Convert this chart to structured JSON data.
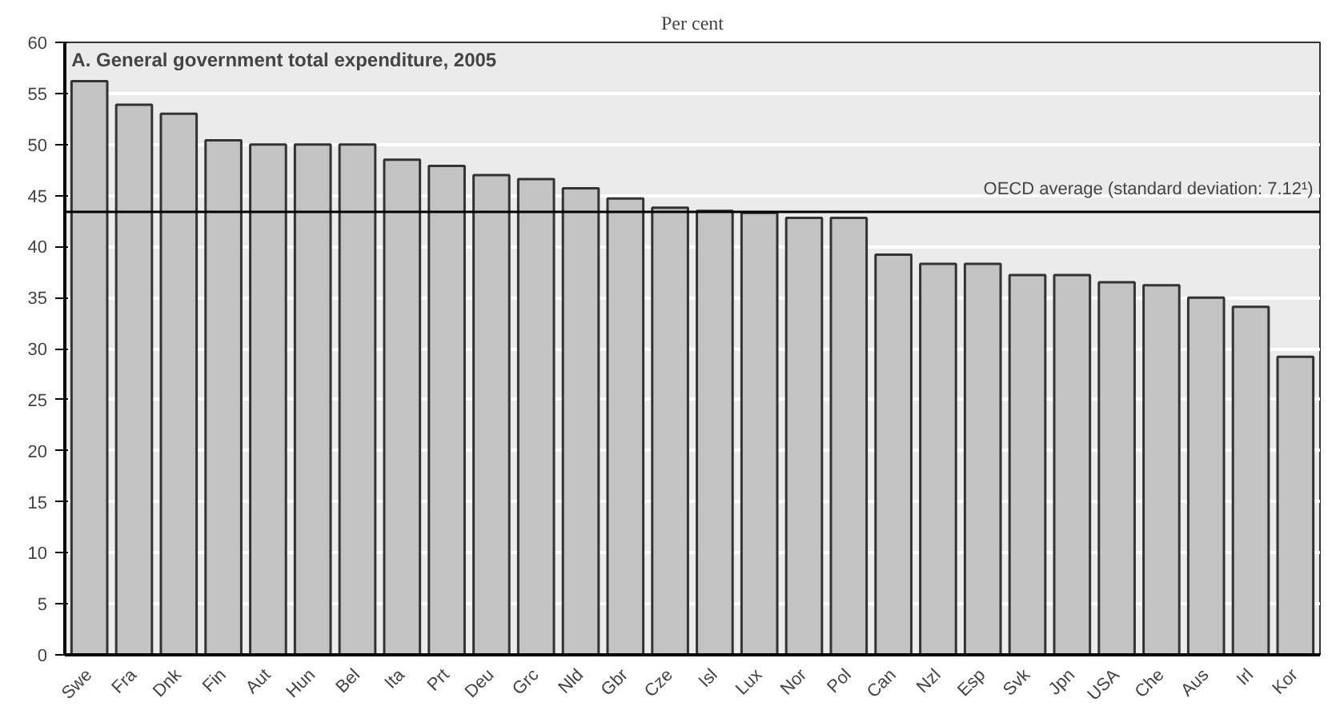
{
  "chart_data": {
    "type": "bar",
    "title": "Per cent",
    "subtitle": "A. General government total expenditure, 2005",
    "categories": [
      "Swe",
      "Fra",
      "Dnk",
      "Fin",
      "Aut",
      "Hun",
      "Bel",
      "Ita",
      "Prt",
      "Deu",
      "Grc",
      "Nld",
      "Gbr",
      "Cze",
      "Isl",
      "Lux",
      "Nor",
      "Pol",
      "Can",
      "Nzl",
      "Esp",
      "Svk",
      "Jpn",
      "USA",
      "Che",
      "Aus",
      "Irl",
      "Kor"
    ],
    "values": [
      56.2,
      53.9,
      53.0,
      50.4,
      50.0,
      50.0,
      50.0,
      48.5,
      47.9,
      47.0,
      46.6,
      45.7,
      44.7,
      43.8,
      43.5,
      43.3,
      42.8,
      42.8,
      39.2,
      38.3,
      38.3,
      37.2,
      37.2,
      36.5,
      36.2,
      35.0,
      34.1,
      29.2
    ],
    "color": "#c3c3c3",
    "ylim": [
      0,
      60
    ],
    "yticks": [
      0,
      5,
      10,
      15,
      20,
      25,
      30,
      35,
      40,
      45,
      50,
      55,
      60
    ],
    "grid": "y",
    "ref_lines": [
      {
        "axis": "y",
        "value": 43.4,
        "color": "#000000"
      }
    ],
    "annotations": [
      "OECD average (standard deviation: 7.12¹)"
    ]
  }
}
